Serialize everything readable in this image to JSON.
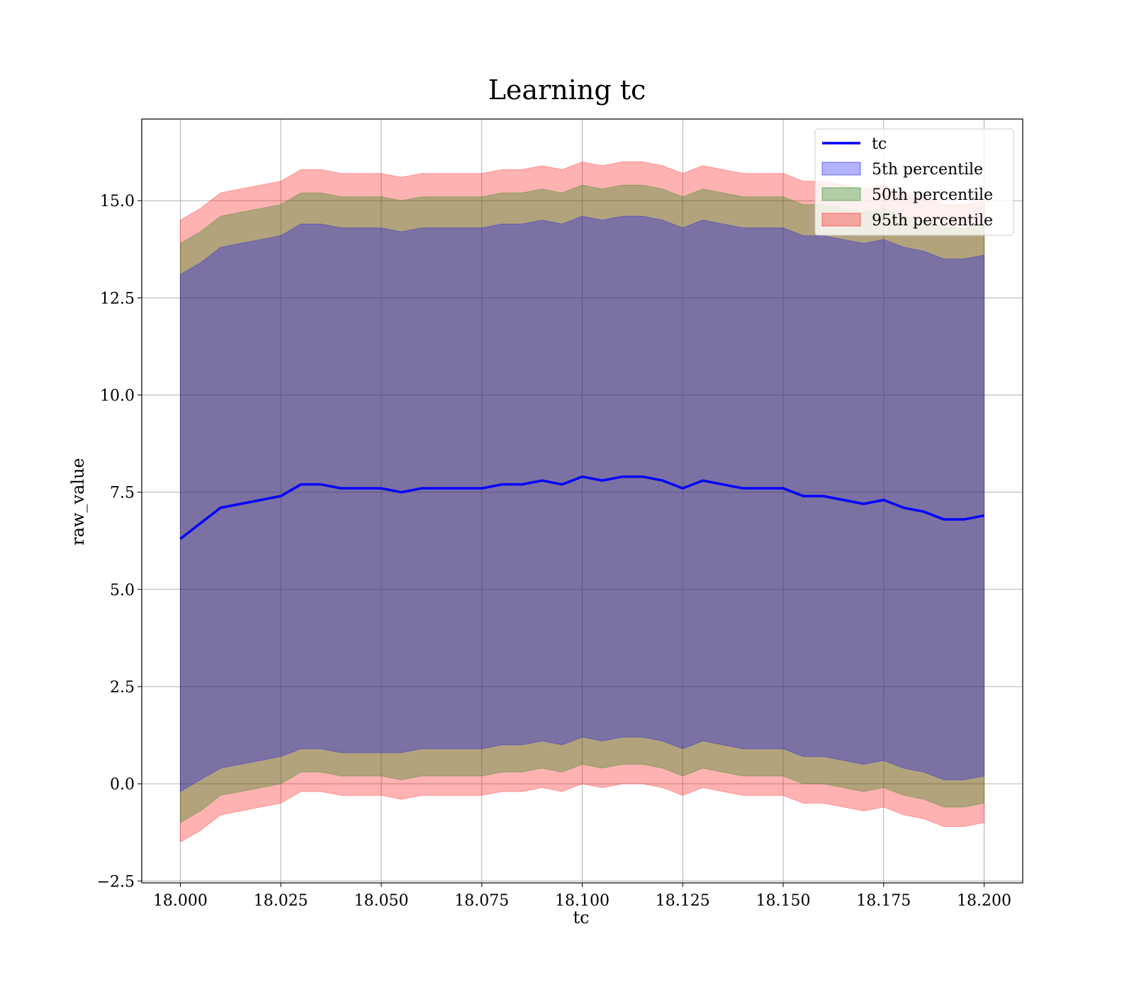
{
  "chart_data": {
    "type": "line",
    "title": "Learning tc",
    "xlabel": "tc",
    "ylabel": "raw_value",
    "xlim": [
      17.9904,
      18.2096
    ],
    "ylim": [
      -2.55,
      17.1
    ],
    "xticks": [
      18.0,
      18.025,
      18.05,
      18.075,
      18.1,
      18.125,
      18.15,
      18.175,
      18.2
    ],
    "xtick_labels": [
      "18.000",
      "18.025",
      "18.050",
      "18.075",
      "18.100",
      "18.125",
      "18.150",
      "18.175",
      "18.200"
    ],
    "yticks": [
      -2.5,
      0.0,
      2.5,
      5.0,
      7.5,
      10.0,
      12.5,
      15.0
    ],
    "ytick_labels": [
      "−2.5",
      "0.0",
      "2.5",
      "5.0",
      "7.5",
      "10.0",
      "12.5",
      "15.0"
    ],
    "grid": true,
    "legend_position": "top-right",
    "colors": {
      "line": "#0000ff",
      "p5": "#0000ff",
      "p50": "#008000",
      "p95": "#ff0000"
    },
    "x": [
      18.0,
      18.005,
      18.01,
      18.015,
      18.02,
      18.025,
      18.03,
      18.035,
      18.04,
      18.045,
      18.05,
      18.055,
      18.06,
      18.065,
      18.07,
      18.075,
      18.08,
      18.085,
      18.09,
      18.095,
      18.1,
      18.105,
      18.11,
      18.115,
      18.12,
      18.125,
      18.13,
      18.135,
      18.14,
      18.145,
      18.15,
      18.155,
      18.16,
      18.165,
      18.17,
      18.175,
      18.18,
      18.185,
      18.19,
      18.195,
      18.2
    ],
    "series": [
      {
        "name": "tc",
        "kind": "line",
        "values": [
          6.3,
          6.7,
          7.1,
          7.2,
          7.3,
          7.4,
          7.7,
          7.7,
          7.6,
          7.6,
          7.6,
          7.5,
          7.6,
          7.6,
          7.6,
          7.6,
          7.7,
          7.7,
          7.8,
          7.7,
          7.9,
          7.8,
          7.9,
          7.9,
          7.8,
          7.6,
          7.8,
          7.7,
          7.6,
          7.6,
          7.6,
          7.4,
          7.4,
          7.3,
          7.2,
          7.3,
          7.1,
          7.0,
          6.8,
          6.8,
          6.9
        ]
      },
      {
        "name": "5th percentile",
        "kind": "band",
        "lower": [
          -0.2,
          0.1,
          0.4,
          0.5,
          0.6,
          0.7,
          0.9,
          0.9,
          0.8,
          0.8,
          0.8,
          0.8,
          0.9,
          0.9,
          0.9,
          0.9,
          1.0,
          1.0,
          1.1,
          1.0,
          1.2,
          1.1,
          1.2,
          1.2,
          1.1,
          0.9,
          1.1,
          1.0,
          0.9,
          0.9,
          0.9,
          0.7,
          0.7,
          0.6,
          0.5,
          0.6,
          0.4,
          0.3,
          0.1,
          0.1,
          0.2
        ],
        "upper": [
          13.1,
          13.4,
          13.8,
          13.9,
          14.0,
          14.1,
          14.4,
          14.4,
          14.3,
          14.3,
          14.3,
          14.2,
          14.3,
          14.3,
          14.3,
          14.3,
          14.4,
          14.4,
          14.5,
          14.4,
          14.6,
          14.5,
          14.6,
          14.6,
          14.5,
          14.3,
          14.5,
          14.4,
          14.3,
          14.3,
          14.3,
          14.1,
          14.1,
          14.0,
          13.9,
          14.0,
          13.8,
          13.7,
          13.5,
          13.5,
          13.6
        ]
      },
      {
        "name": "50th percentile",
        "kind": "band",
        "lower": [
          -1.0,
          -0.7,
          -0.3,
          -0.2,
          -0.1,
          0.0,
          0.3,
          0.3,
          0.2,
          0.2,
          0.2,
          0.1,
          0.2,
          0.2,
          0.2,
          0.2,
          0.3,
          0.3,
          0.4,
          0.3,
          0.5,
          0.4,
          0.5,
          0.5,
          0.4,
          0.2,
          0.4,
          0.3,
          0.2,
          0.2,
          0.2,
          0.0,
          0.0,
          -0.1,
          -0.2,
          -0.1,
          -0.3,
          -0.4,
          -0.6,
          -0.6,
          -0.5
        ],
        "upper": [
          13.9,
          14.2,
          14.6,
          14.7,
          14.8,
          14.9,
          15.2,
          15.2,
          15.1,
          15.1,
          15.1,
          15.0,
          15.1,
          15.1,
          15.1,
          15.1,
          15.2,
          15.2,
          15.3,
          15.2,
          15.4,
          15.3,
          15.4,
          15.4,
          15.3,
          15.1,
          15.3,
          15.2,
          15.1,
          15.1,
          15.1,
          14.9,
          14.9,
          14.8,
          14.7,
          14.8,
          14.6,
          14.5,
          14.3,
          14.3,
          14.4
        ]
      },
      {
        "name": "95th percentile",
        "kind": "band",
        "lower": [
          -1.5,
          -1.2,
          -0.8,
          -0.7,
          -0.6,
          -0.5,
          -0.2,
          -0.2,
          -0.3,
          -0.3,
          -0.3,
          -0.4,
          -0.3,
          -0.3,
          -0.3,
          -0.3,
          -0.2,
          -0.2,
          -0.1,
          -0.2,
          0.0,
          -0.1,
          0.0,
          0.0,
          -0.1,
          -0.3,
          -0.1,
          -0.2,
          -0.3,
          -0.3,
          -0.3,
          -0.5,
          -0.5,
          -0.6,
          -0.7,
          -0.6,
          -0.8,
          -0.9,
          -1.1,
          -1.1,
          -1.0
        ],
        "upper": [
          14.5,
          14.8,
          15.2,
          15.3,
          15.4,
          15.5,
          15.8,
          15.8,
          15.7,
          15.7,
          15.7,
          15.6,
          15.7,
          15.7,
          15.7,
          15.7,
          15.8,
          15.8,
          15.9,
          15.8,
          16.0,
          15.9,
          16.0,
          16.0,
          15.9,
          15.7,
          15.9,
          15.8,
          15.7,
          15.7,
          15.7,
          15.5,
          15.5,
          15.4,
          15.3,
          15.4,
          15.2,
          15.1,
          14.9,
          14.9,
          15.0
        ]
      }
    ]
  }
}
